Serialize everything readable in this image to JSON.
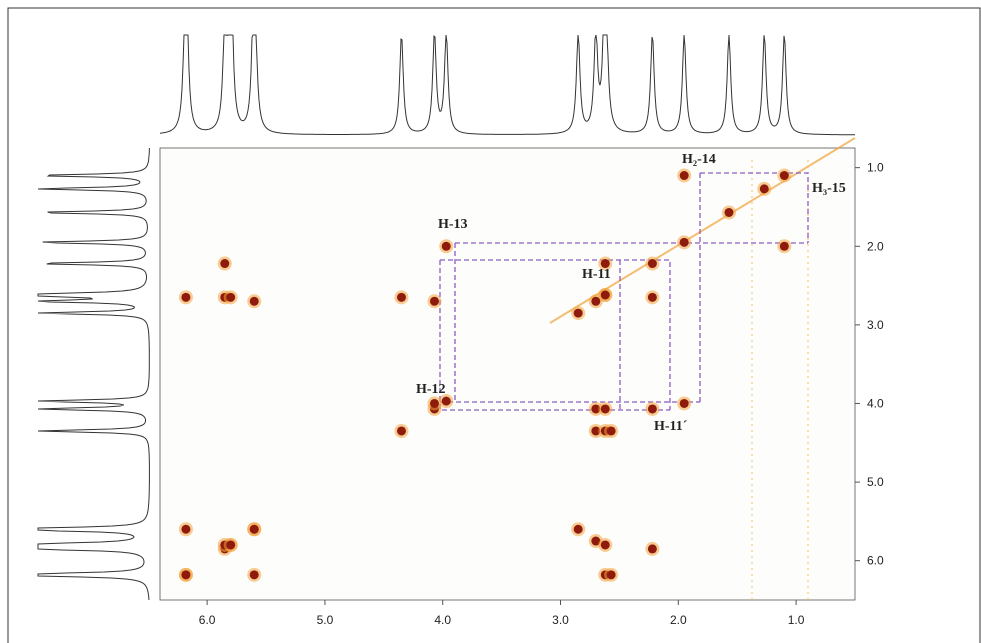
{
  "chart_data": {
    "type": "scatter",
    "xlim": [
      6.4,
      0.5
    ],
    "ylim": [
      0.75,
      6.5
    ],
    "xticks": [
      {
        "value": 6,
        "label": "6.0"
      },
      {
        "value": 5,
        "label": "5.0"
      },
      {
        "value": 4,
        "label": "4.0"
      },
      {
        "value": 3,
        "label": "3.0"
      },
      {
        "value": 2,
        "label": "2.0"
      },
      {
        "value": 1,
        "label": "1.0"
      }
    ],
    "yticks": [
      {
        "value": 1,
        "label": "1.0"
      },
      {
        "value": 2,
        "label": "2.0"
      },
      {
        "value": 3,
        "label": "3.0"
      },
      {
        "value": 4,
        "label": "4.0"
      },
      {
        "value": 5,
        "label": "5.0"
      },
      {
        "value": 6,
        "label": "6.0"
      }
    ],
    "color": "#8e1b0c",
    "x": [
      6.18,
      5.85,
      5.8,
      5.6,
      4.35,
      4.07,
      3.97,
      2.85,
      2.7,
      2.62,
      2.22,
      1.95,
      1.57,
      1.27,
      1.1,
      1.95,
      3.97,
      1.1,
      5.85,
      2.62,
      6.18,
      5.85,
      5.8,
      5.6,
      4.35,
      4.07,
      2.62,
      2.22,
      4.07,
      1.95,
      2.7,
      2.62,
      2.22,
      2.7,
      2.62,
      2.57,
      6.18,
      5.6,
      2.85,
      5.85,
      5.8,
      2.7,
      2.62,
      2.22,
      6.18,
      5.6,
      2.62,
      2.57
    ],
    "values": [
      6.18,
      5.85,
      5.8,
      5.6,
      4.35,
      4.07,
      3.97,
      2.85,
      2.7,
      2.62,
      2.22,
      1.95,
      1.57,
      1.27,
      1.1,
      1.1,
      2.0,
      2.0,
      2.22,
      2.22,
      2.65,
      2.65,
      2.65,
      2.7,
      2.65,
      2.7,
      2.62,
      2.65,
      4.0,
      4.0,
      4.07,
      4.07,
      4.07,
      4.35,
      4.35,
      4.35,
      5.6,
      5.6,
      5.6,
      5.8,
      5.8,
      5.75,
      5.8,
      5.85,
      6.18,
      6.18,
      6.18,
      6.18
    ],
    "annotations": [
      "H₂-14",
      "H₃-15",
      "H-13",
      "H-11",
      "H-12",
      "H-11´"
    ]
  }
}
